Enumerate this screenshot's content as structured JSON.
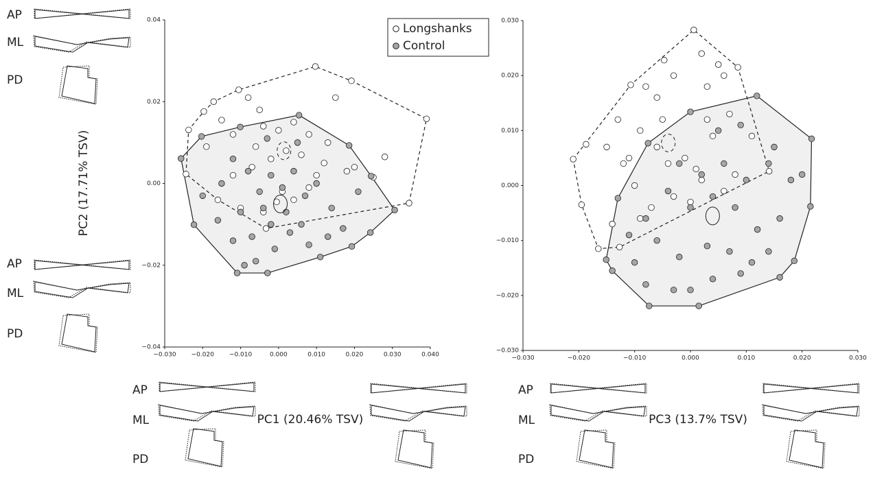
{
  "chart_data": [
    {
      "type": "scatter",
      "xlabel": "PC1 (20.46% TSV)",
      "ylabel": "PC2 (17.71% TSV)",
      "legend": "upper right",
      "xlim": [
        -0.03,
        0.04
      ],
      "ylim": [
        -0.04,
        0.04
      ],
      "xticks": [
        {
          "value": -0.03,
          "label": "−0.030"
        },
        {
          "value": -0.02,
          "label": "−0.020"
        },
        {
          "value": -0.01,
          "label": "−0.010"
        },
        {
          "value": 0,
          "label": "0.000"
        },
        {
          "value": 0.01,
          "label": "0.010"
        },
        {
          "value": 0.02,
          "label": "0.020"
        },
        {
          "value": 0.03,
          "label": "0.030"
        },
        {
          "value": 0.04,
          "label": "0.040"
        }
      ],
      "yticks": [
        {
          "value": -0.04,
          "label": "−0.04"
        },
        {
          "value": -0.02,
          "label": "−0.02"
        },
        {
          "value": 0,
          "label": "0.00"
        },
        {
          "value": 0.02,
          "label": "0.02"
        },
        {
          "value": 0.04,
          "label": "0.04"
        }
      ],
      "series": [
        {
          "name": "Longshanks",
          "color": "#ffffff",
          "x": [
            -0.0237,
            -0.0197,
            -0.0171,
            -0.0105,
            0.0097,
            0.0192,
            0.039,
            0.0344,
            -0.0033,
            -0.0244,
            -0.015,
            -0.008,
            -0.005,
            -0.012,
            -0.004,
            0.0,
            0.004,
            0.008,
            0.013,
            0.018,
            0.02,
            0.025,
            0.028,
            0.012,
            0.006,
            0.002,
            -0.002,
            -0.007,
            -0.012,
            -0.016,
            -0.01,
            -0.004,
            0.001,
            0.008,
            0.004,
            -0.006,
            0.01,
            -0.019,
            0.015,
            -0.0005
          ],
          "y": [
            0.0131,
            0.0176,
            0.02,
            0.0229,
            0.0286,
            0.0251,
            0.0158,
            -0.0048,
            -0.011,
            0.0023,
            0.0155,
            0.021,
            0.018,
            0.012,
            0.014,
            0.013,
            0.015,
            0.012,
            0.01,
            0.003,
            0.004,
            0.0015,
            0.0065,
            0.005,
            0.007,
            0.008,
            0.006,
            0.004,
            0.002,
            -0.004,
            -0.006,
            -0.007,
            -0.002,
            -0.001,
            -0.004,
            0.009,
            0.002,
            0.009,
            0.021,
            -0.0045
          ]
        },
        {
          "name": "Control",
          "color": "#a6a6a6",
          "x": [
            -0.0257,
            -0.0203,
            -0.0101,
            0.0054,
            0.0186,
            0.0244,
            0.0306,
            0.0242,
            0.0193,
            -0.0029,
            -0.0109,
            -0.0223,
            -0.02,
            -0.015,
            -0.012,
            -0.008,
            -0.005,
            -0.002,
            0.001,
            0.004,
            0.007,
            0.01,
            0.014,
            0.017,
            0.021,
            0.013,
            0.008,
            0.003,
            -0.002,
            -0.007,
            -0.012,
            -0.016,
            -0.01,
            -0.004,
            0.002,
            0.006,
            0.005,
            -0.003,
            -0.009,
            -0.006,
            0.011,
            -0.001
          ],
          "y": [
            0.0061,
            0.0115,
            0.0138,
            0.0167,
            0.0093,
            0.0018,
            -0.0065,
            -0.012,
            -0.0154,
            -0.0219,
            -0.0219,
            -0.0101,
            -0.003,
            0.0,
            0.006,
            0.003,
            -0.002,
            0.002,
            -0.001,
            0.003,
            -0.003,
            0.0,
            -0.006,
            -0.011,
            -0.002,
            -0.013,
            -0.015,
            -0.012,
            -0.01,
            -0.013,
            -0.014,
            -0.009,
            -0.007,
            -0.006,
            -0.007,
            -0.01,
            0.01,
            0.011,
            -0.02,
            -0.019,
            -0.018,
            -0.016
          ]
        }
      ]
    },
    {
      "type": "scatter",
      "xlabel": "PC3 (13.7% TSV)",
      "xlim": [
        -0.03,
        0.03
      ],
      "ylim": [
        -0.03,
        0.03
      ],
      "xticks": [
        {
          "value": -0.03,
          "label": "−0.030"
        },
        {
          "value": -0.02,
          "label": "−0.020"
        },
        {
          "value": -0.01,
          "label": "−0.010"
        },
        {
          "value": 0,
          "label": "0.000"
        },
        {
          "value": 0.01,
          "label": "0.010"
        },
        {
          "value": 0.02,
          "label": "0.020"
        },
        {
          "value": 0.03,
          "label": "0.030"
        }
      ],
      "yticks": [
        {
          "value": -0.03,
          "label": "−0.030"
        },
        {
          "value": -0.02,
          "label": "−0.020"
        },
        {
          "value": -0.01,
          "label": "−0.010"
        },
        {
          "value": 0,
          "label": "0.000"
        },
        {
          "value": 0.01,
          "label": "0.010"
        },
        {
          "value": 0.02,
          "label": "0.020"
        },
        {
          "value": 0.03,
          "label": "0.030"
        }
      ],
      "series": [
        {
          "color": "#ffffff",
          "x": [
            0.0006,
            0.0085,
            0.0141,
            -0.0127,
            -0.0165,
            -0.0195,
            -0.021,
            -0.0187,
            -0.0107,
            -0.0047,
            -0.008,
            -0.006,
            -0.003,
            0.002,
            0.005,
            0.006,
            0.003,
            -0.013,
            -0.009,
            -0.006,
            -0.004,
            -0.001,
            0.001,
            0.004,
            0.007,
            -0.012,
            -0.01,
            -0.007,
            -0.003,
            0.002,
            0.008,
            0.011,
            -0.015,
            -0.014,
            -0.009,
            0.0,
            0.006,
            -0.005,
            0.003,
            -0.011
          ],
          "y": [
            0.0283,
            0.0215,
            0.0026,
            -0.0112,
            -0.0115,
            -0.0035,
            0.0048,
            0.0075,
            0.0183,
            0.0228,
            0.018,
            0.016,
            0.02,
            0.024,
            0.022,
            0.02,
            0.018,
            0.012,
            0.01,
            0.007,
            0.004,
            0.005,
            0.003,
            0.009,
            0.013,
            0.004,
            0.0,
            -0.004,
            -0.002,
            0.001,
            0.002,
            0.009,
            0.007,
            -0.007,
            -0.006,
            -0.003,
            -0.001,
            0.012,
            0.012,
            0.005
          ]
        },
        {
          "color": "#a6a6a6",
          "x": [
            0.0119,
            0.0217,
            0.0215,
            0.0186,
            0.016,
            0.0015,
            -0.0074,
            -0.014,
            -0.0151,
            -0.013,
            -0.0076,
            0.0,
            0.005,
            0.009,
            0.014,
            0.018,
            0.02,
            0.016,
            0.012,
            0.008,
            0.004,
            0.0,
            -0.004,
            -0.008,
            -0.011,
            -0.006,
            -0.002,
            0.003,
            0.007,
            0.011,
            0.014,
            -0.008,
            -0.003,
            0.0,
            0.004,
            0.009,
            -0.01,
            0.002,
            0.006,
            0.01,
            -0.002,
            0.015
          ],
          "y": [
            0.0163,
            0.0085,
            -0.0038,
            -0.0137,
            -0.0167,
            -0.0219,
            -0.0219,
            -0.0155,
            -0.0135,
            -0.0023,
            0.0077,
            0.0134,
            0.01,
            0.011,
            0.004,
            0.001,
            0.002,
            -0.006,
            -0.008,
            -0.004,
            -0.002,
            -0.004,
            -0.001,
            -0.006,
            -0.009,
            -0.01,
            -0.013,
            -0.011,
            -0.012,
            -0.014,
            -0.012,
            -0.018,
            -0.019,
            -0.019,
            -0.017,
            -0.016,
            -0.014,
            0.002,
            0.004,
            0.001,
            0.004,
            0.007
          ]
        }
      ]
    }
  ],
  "shape_labels": [
    "AP",
    "ML",
    "PD"
  ]
}
